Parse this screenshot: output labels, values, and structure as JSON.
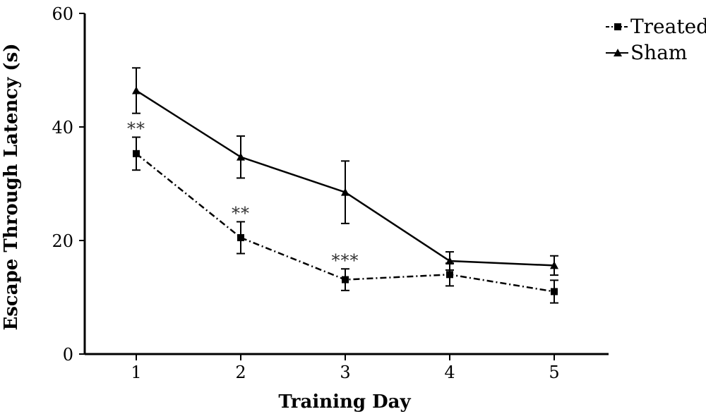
{
  "chart_data": {
    "type": "line",
    "xlabel": "Training Day",
    "ylabel": "Escape Through Latency (s)",
    "x": [
      1,
      2,
      3,
      4,
      5
    ],
    "x_tick_labels": [
      "1",
      "2",
      "3",
      "4",
      "5"
    ],
    "ylim": [
      0,
      60
    ],
    "y_ticks": [
      0,
      20,
      40,
      60
    ],
    "y_tick_labels": [
      "0",
      "20",
      "40",
      "60"
    ],
    "grid": false,
    "legend_position": "top-right",
    "series": [
      {
        "name": "Treated",
        "marker": "square",
        "line_style": "dash-dot",
        "values": [
          35.3,
          20.5,
          13.1,
          14.0,
          11.0
        ],
        "errors": [
          2.9,
          2.8,
          1.9,
          2.0,
          2.0
        ]
      },
      {
        "name": "Sham",
        "marker": "triangle",
        "line_style": "solid",
        "values": [
          46.4,
          34.7,
          28.5,
          16.4,
          15.6
        ],
        "errors": [
          4.0,
          3.7,
          5.5,
          1.6,
          1.7
        ]
      }
    ],
    "annotations": [
      {
        "x": 1,
        "y": 38.2,
        "text": "**"
      },
      {
        "x": 2,
        "y": 23.3,
        "text": "**"
      },
      {
        "x": 3,
        "y": 15.0,
        "text": "***"
      }
    ]
  },
  "colors": {
    "line": "#000000"
  }
}
